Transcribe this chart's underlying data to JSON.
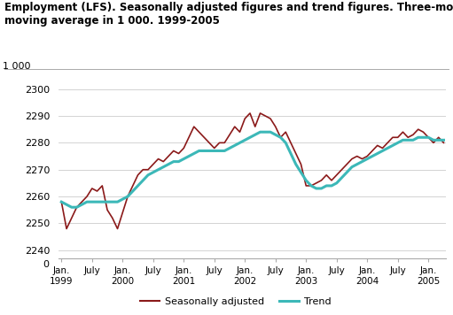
{
  "title_line1": "Employment (LFS). Seasonally adjusted figures and trend figures. Three-month",
  "title_line2": "moving average in 1 000. 1999-2005",
  "ylabel": "1 000",
  "ylim_bottom": 2237,
  "ylim_top": 2305,
  "yticks": [
    2240,
    2250,
    2260,
    2270,
    2280,
    2290,
    2300
  ],
  "sa_color": "#8b1a1a",
  "trend_color": "#3cb8b8",
  "sa_label": "Seasonally adjusted",
  "trend_label": "Trend",
  "background_color": "#ffffff",
  "grid_color": "#cccccc",
  "sa_data": [
    2258,
    2248,
    2252,
    2256,
    2258,
    2260,
    2263,
    2262,
    2264,
    2255,
    2252,
    2248,
    2254,
    2260,
    2264,
    2268,
    2270,
    2270,
    2272,
    2274,
    2273,
    2275,
    2277,
    2276,
    2278,
    2282,
    2286,
    2284,
    2282,
    2280,
    2278,
    2280,
    2280,
    2283,
    2286,
    2284,
    2289,
    2291,
    2286,
    2291,
    2290,
    2289,
    2286,
    2282,
    2284,
    2280,
    2276,
    2272,
    2264,
    2264,
    2265,
    2266,
    2268,
    2266,
    2268,
    2270,
    2272,
    2274,
    2275,
    2274,
    2275,
    2277,
    2279,
    2278,
    2280,
    2282,
    2282,
    2284,
    2282,
    2283,
    2285,
    2284,
    2282,
    2280,
    2282,
    2280
  ],
  "trend_data": [
    2258,
    2257,
    2256,
    2256,
    2257,
    2258,
    2258,
    2258,
    2258,
    2258,
    2258,
    2258,
    2259,
    2260,
    2262,
    2264,
    2266,
    2268,
    2269,
    2270,
    2271,
    2272,
    2273,
    2273,
    2274,
    2275,
    2276,
    2277,
    2277,
    2277,
    2277,
    2277,
    2277,
    2278,
    2279,
    2280,
    2281,
    2282,
    2283,
    2284,
    2284,
    2284,
    2283,
    2282,
    2280,
    2276,
    2272,
    2269,
    2266,
    2264,
    2263,
    2263,
    2264,
    2264,
    2265,
    2267,
    2269,
    2271,
    2272,
    2273,
    2274,
    2275,
    2276,
    2277,
    2278,
    2279,
    2280,
    2281,
    2281,
    2281,
    2282,
    2282,
    2282,
    2281,
    2281,
    2281
  ],
  "x_tick_positions": [
    0,
    6,
    12,
    18,
    24,
    30,
    36,
    42,
    48,
    54,
    60,
    66,
    72
  ],
  "x_tick_labels": [
    "Jan.\n1999",
    "July",
    "Jan.\n2000",
    "July",
    "Jan.\n2001",
    "July",
    "Jan.\n2002",
    "July",
    "Jan.\n2003",
    "July",
    "Jan.\n2004",
    "July",
    "Jan.\n2005"
  ]
}
